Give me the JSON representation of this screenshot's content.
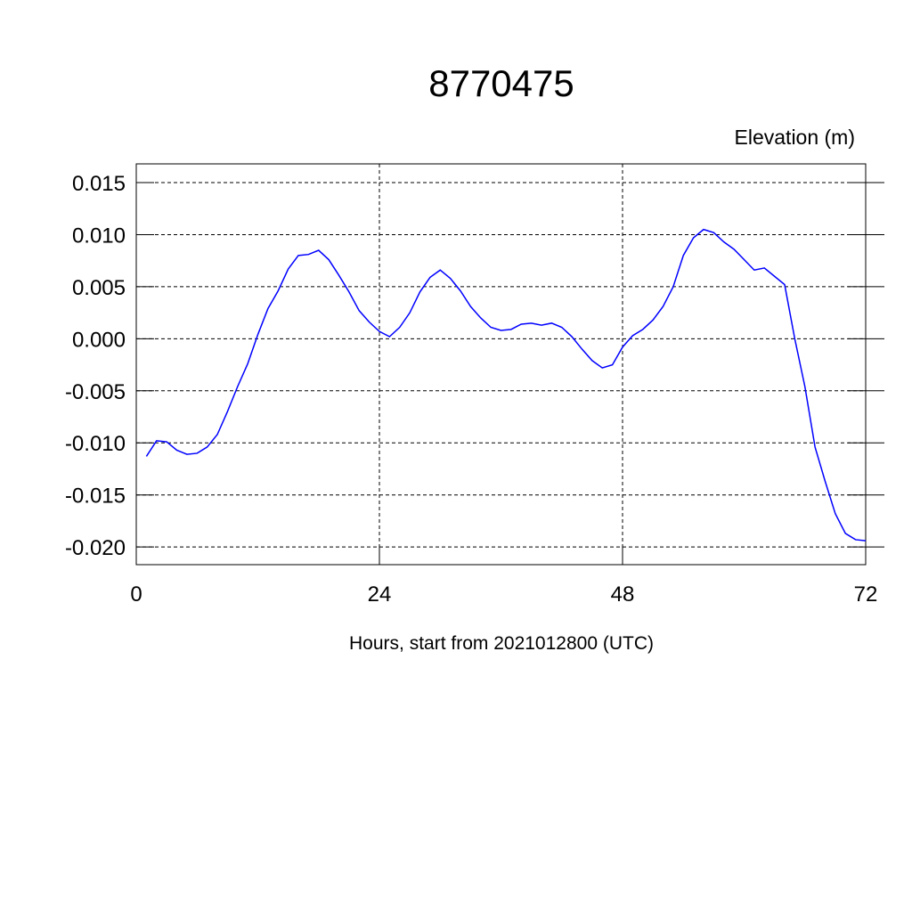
{
  "chart_data": {
    "type": "line",
    "title": "8770475",
    "subtitle": "Elevation (m)",
    "x_label": "Hours, start from 2021012800 (UTC)",
    "x": [
      1,
      2,
      3,
      4,
      5,
      6,
      7,
      8,
      9,
      10,
      11,
      12,
      13,
      14,
      15,
      16,
      17,
      18,
      19,
      20,
      21,
      22,
      23,
      24,
      25,
      26,
      27,
      28,
      29,
      30,
      31,
      32,
      33,
      34,
      35,
      36,
      37,
      38,
      39,
      40,
      41,
      42,
      43,
      44,
      45,
      46,
      47,
      48,
      49,
      50,
      51,
      52,
      53,
      54,
      55,
      56,
      57,
      58,
      59,
      60,
      61,
      62,
      63,
      64,
      65,
      66,
      67,
      68,
      69,
      70,
      71,
      72
    ],
    "series": [
      {
        "name": "Elevation (m)",
        "color": "#0000ff",
        "values": [
          -0.0113,
          -0.0098,
          -0.0099,
          -0.0107,
          -0.0111,
          -0.011,
          -0.0104,
          -0.0092,
          -0.007,
          -0.0046,
          -0.0024,
          0.0004,
          0.0029,
          0.0046,
          0.0067,
          0.008,
          0.0081,
          0.0085,
          0.0076,
          0.0061,
          0.0045,
          0.0027,
          0.0016,
          0.0007,
          0.0002,
          0.0011,
          0.0025,
          0.0045,
          0.0059,
          0.0066,
          0.0058,
          0.0046,
          0.0031,
          0.002,
          0.0011,
          0.0008,
          0.0009,
          0.0014,
          0.0015,
          0.0013,
          0.0015,
          0.0011,
          0.0002,
          -0.001,
          -0.0021,
          -0.0028,
          -0.0025,
          -0.0008,
          0.0003,
          0.0009,
          0.0018,
          0.0031,
          0.005,
          0.008,
          0.0097,
          0.0105,
          0.0102,
          0.0093,
          0.0086,
          0.0076,
          0.0066,
          0.0068,
          0.006,
          0.0052,
          0.0,
          -0.0046,
          -0.0104,
          -0.0137,
          -0.0168,
          -0.0187,
          -0.0193,
          -0.0194
        ]
      }
    ],
    "xlim": [
      0,
      72
    ],
    "xticks": [
      0,
      24,
      48,
      72
    ],
    "ylim": [
      -0.0217,
      0.0168
    ],
    "yticks": [
      {
        "value": -0.02,
        "label": "-0.020"
      },
      {
        "value": -0.015,
        "label": "-0.015"
      },
      {
        "value": -0.01,
        "label": "-0.010"
      },
      {
        "value": -0.005,
        "label": "-0.005"
      },
      {
        "value": 0,
        "label": "0.000"
      },
      {
        "value": 0.005,
        "label": "0.005"
      },
      {
        "value": 0.01,
        "label": "0.010"
      },
      {
        "value": 0.015,
        "label": "0.015"
      }
    ],
    "grid": true
  }
}
